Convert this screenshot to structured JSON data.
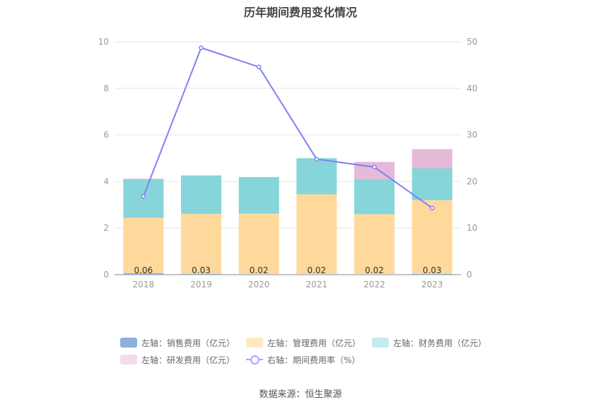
{
  "chart_data": {
    "type": "bar",
    "title": "历年期间费用变化情况",
    "categories": [
      "2018",
      "2019",
      "2020",
      "2021",
      "2022",
      "2023"
    ],
    "left_axis": {
      "ylim": [
        0,
        10
      ],
      "ticks": [
        "0",
        "2",
        "4",
        "6",
        "8",
        "10"
      ]
    },
    "right_axis": {
      "ylim": [
        0,
        50
      ],
      "ticks": [
        "0",
        "10",
        "20",
        "30",
        "40",
        "50"
      ]
    },
    "stacked": true,
    "series": [
      {
        "name": "左轴：销售费用（亿元）",
        "type": "bar",
        "axis": "left",
        "color": "#8eb0dc",
        "values": [
          0.06,
          0.03,
          0.02,
          0.02,
          0.02,
          0.03
        ],
        "labels": [
          "0.06",
          "0.03",
          "0.02",
          "0.02",
          "0.02",
          "0.03"
        ]
      },
      {
        "name": "左轴：管理费用（亿元）",
        "type": "bar",
        "axis": "left",
        "color": "#ffd99b",
        "values": [
          2.38,
          2.58,
          2.6,
          3.43,
          2.58,
          3.17
        ]
      },
      {
        "name": "左轴：财务费用（亿元）",
        "type": "bar",
        "axis": "left",
        "color": "#86d5da",
        "values": [
          1.66,
          1.65,
          1.57,
          1.55,
          1.5,
          1.36
        ]
      },
      {
        "name": "左轴：研发费用（亿元）",
        "type": "bar",
        "axis": "left",
        "color": "#e5b9d8",
        "values": [
          0.02,
          0,
          0,
          0,
          0.74,
          0.83
        ]
      },
      {
        "name": "右轴：期间费用率（%）",
        "type": "line",
        "axis": "right",
        "color": "#8080f5",
        "values": [
          16.8,
          48.7,
          44.6,
          24.8,
          23.1,
          14.3
        ]
      }
    ],
    "legend_position": "bottom",
    "grid": true
  },
  "legend": {
    "items": [
      {
        "label": "左轴：销售费用（亿元）",
        "color": "#8eb0dc",
        "kind": "bar"
      },
      {
        "label": "左轴：管理费用（亿元）",
        "color": "#ffe8c4",
        "kind": "bar"
      },
      {
        "label": "左轴：财务费用（亿元）",
        "color": "#c2ecee",
        "kind": "bar"
      },
      {
        "label": "左轴：研发费用（亿元）",
        "color": "#f3dcec",
        "kind": "bar"
      },
      {
        "label": "右轴：期间费用率（%）",
        "color": "#a6a6ff",
        "kind": "line"
      }
    ]
  },
  "source": "数据来源：恒生聚源"
}
